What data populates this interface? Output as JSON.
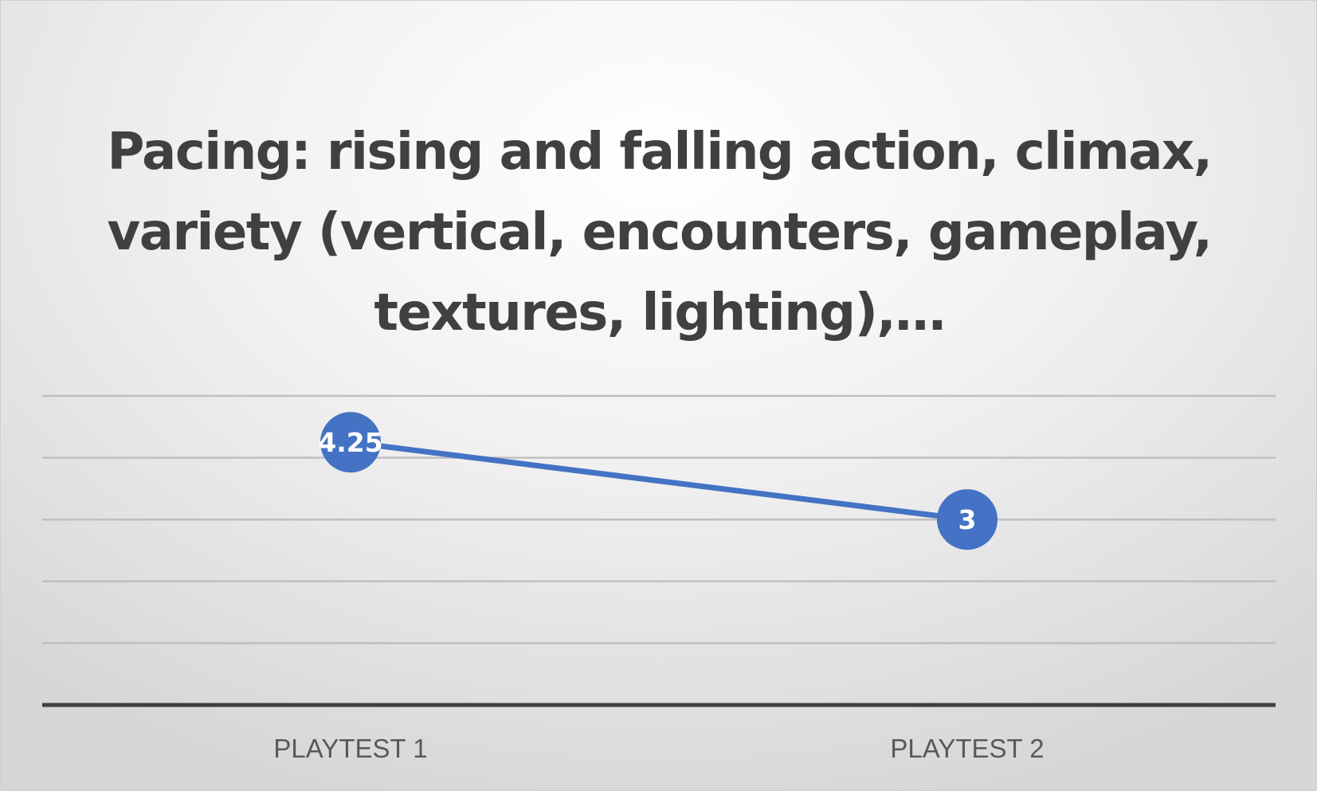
{
  "chart_data": {
    "type": "line",
    "title": "Pacing: rising and falling action, climax, variety (vertical, encounters, gameplay, textures, lighting),…",
    "categories": [
      "PLAYTEST 1",
      "PLAYTEST 2"
    ],
    "series": [
      {
        "values": [
          4.25,
          3
        ],
        "data_labels": [
          "4.25",
          "3"
        ]
      }
    ],
    "ylim": [
      0,
      5
    ],
    "ytick_step": 1,
    "y_axis_labels_shown": false,
    "grid": true,
    "legend": "none",
    "xlabel": "",
    "ylabel": "",
    "colors": {
      "series": "#4472C4",
      "gridline": "#bfbfbf",
      "axis": "#404040",
      "title": "#404040",
      "tick_label": "#595959",
      "data_label": "#ffffff"
    }
  }
}
